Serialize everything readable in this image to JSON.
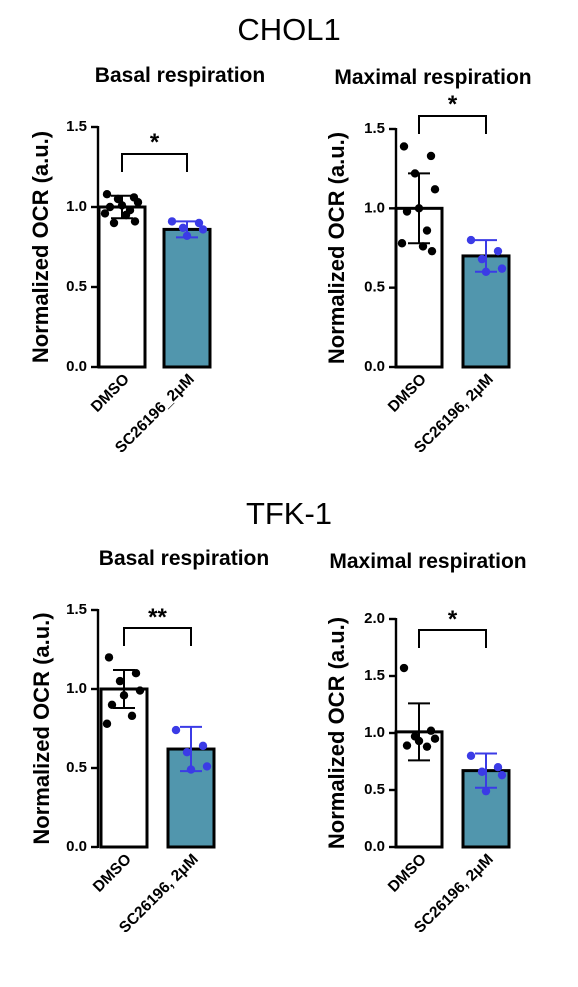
{
  "groups": {
    "chol1": "CHOL1",
    "tfk1": "TFK-1"
  },
  "colors": {
    "dmso_fill": "#ffffff",
    "treat_fill": "#5196ad",
    "dmso_points": "#000000",
    "treat_points": "#3b3be6"
  },
  "chart_data": [
    {
      "type": "bar",
      "group": "CHOL1",
      "title": "Basal respiration",
      "ylabel": "Normalized OCR (a.u.)",
      "ylim": [
        0,
        1.5
      ],
      "yticks": [
        0.0,
        0.5,
        1.0,
        1.5
      ],
      "ytick_labels": [
        "0.0",
        "0.5",
        "1.0",
        "1.5"
      ],
      "categories": [
        "DMSO",
        "SC26196_2μM"
      ],
      "values": [
        1.0,
        0.86
      ],
      "errors": [
        0.07,
        0.05
      ],
      "points": [
        [
          1.08,
          1.06,
          1.05,
          1.03,
          1.01,
          1.0,
          0.98,
          0.96,
          0.95,
          0.91,
          0.9
        ],
        [
          0.91,
          0.9,
          0.87,
          0.86,
          0.82
        ]
      ],
      "significance": "*"
    },
    {
      "type": "bar",
      "group": "CHOL1",
      "title": "Maximal respiration",
      "ylabel": "Normalized OCR (a.u.)",
      "ylim": [
        0,
        1.5
      ],
      "yticks": [
        0.0,
        0.5,
        1.0,
        1.5
      ],
      "ytick_labels": [
        "0.0",
        "0.5",
        "1.0",
        "1.5"
      ],
      "categories": [
        "DMSO",
        "SC26196, 2μM"
      ],
      "values": [
        1.0,
        0.7
      ],
      "errors": [
        0.22,
        0.1
      ],
      "points": [
        [
          1.39,
          1.33,
          1.22,
          1.12,
          1.0,
          0.98,
          0.86,
          0.78,
          0.76,
          0.73
        ],
        [
          0.8,
          0.73,
          0.68,
          0.62,
          0.6
        ]
      ],
      "significance": "*"
    },
    {
      "type": "bar",
      "group": "TFK-1",
      "title": "Basal respiration",
      "ylabel": "Normalized OCR (a.u.)",
      "ylim": [
        0,
        1.5
      ],
      "yticks": [
        0.0,
        0.5,
        1.0,
        1.5
      ],
      "ytick_labels": [
        "0.0",
        "0.5",
        "1.0",
        "1.5"
      ],
      "categories": [
        "DMSO",
        "SC26196, 2μM"
      ],
      "values": [
        1.0,
        0.62
      ],
      "errors": [
        0.12,
        0.14
      ],
      "points": [
        [
          1.2,
          1.1,
          1.05,
          0.99,
          0.96,
          0.9,
          0.83,
          0.78
        ],
        [
          0.74,
          0.64,
          0.6,
          0.51,
          0.49
        ]
      ],
      "significance": "**"
    },
    {
      "type": "bar",
      "group": "TFK-1",
      "title": "Maximal respiration",
      "ylabel": "Normalized OCR (a.u.)",
      "ylim": [
        0,
        2.0
      ],
      "yticks": [
        0.0,
        0.5,
        1.0,
        1.5,
        2.0
      ],
      "ytick_labels": [
        "0.0",
        "0.5",
        "1.0",
        "1.5",
        "2.0"
      ],
      "categories": [
        "DMSO",
        "SC26196, 2μM"
      ],
      "values": [
        1.01,
        0.67
      ],
      "errors": [
        0.25,
        0.15
      ],
      "points": [
        [
          1.57,
          1.02,
          0.97,
          0.95,
          0.93,
          0.89,
          0.88
        ],
        [
          0.8,
          0.7,
          0.66,
          0.63,
          0.49
        ]
      ],
      "significance": "*"
    }
  ]
}
